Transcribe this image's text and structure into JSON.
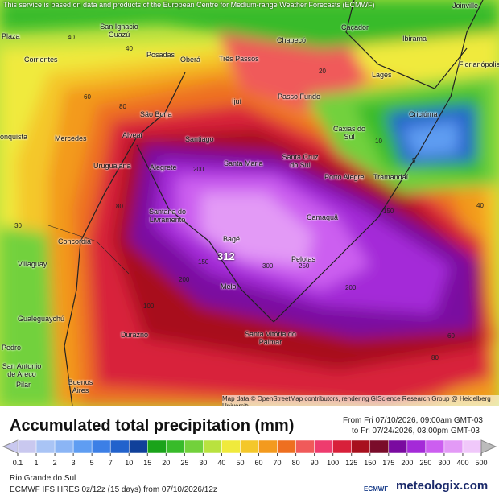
{
  "header": {
    "disclaimer": "This service is based on data and products of the European Centre for Medium-range Weather Forecasts (ECMWF)"
  },
  "map": {
    "cities": [
      "Plaza",
      "San Ignacio Guazú",
      "Corrientes",
      "Posadas",
      "Oberá",
      "Três Passos",
      "Chapecó",
      "Caçador",
      "Joinville",
      "Ibirama",
      "Florianópolis",
      "Lages",
      "Ijuí",
      "Passo Fundo",
      "Criciúma",
      "Caxias do Sul",
      "São Borja",
      "Alvear",
      "onquista",
      "Mercedes",
      "Santiago",
      "Santa Cruz do Sul",
      "Santa Maria",
      "Porto Alegre",
      "Tramandaí",
      "Uruguaiana",
      "Alegrete",
      "Santana do Livramento",
      "Camaquã",
      "Concordia",
      "Bagé",
      "Pelotas",
      "Villaguay",
      "Melo",
      "Gualeguaychú",
      "Durazno",
      "Santa Vitória do Palmar",
      "Pedro",
      "San Antonio de Areco",
      "Pilar",
      "Buenos Aires"
    ],
    "contour_labels": [
      40,
      40,
      60,
      80,
      80,
      100,
      150,
      200,
      200,
      300,
      250,
      200,
      150,
      80,
      60,
      40,
      5,
      10,
      20,
      30
    ],
    "max_value": 312,
    "attribution": "Map data © OpenStreetMap contributors, rendering GIScience Research Group @ Heidelberg University"
  },
  "legend": {
    "title": "Accumulated total precipitation (mm)",
    "from": "From Fri 07/10/2026, 09:00am GMT-03",
    "to": "to Fri 07/24/2026, 03:00pm GMT-03",
    "ticks": [
      0.1,
      1,
      2,
      3,
      5,
      7,
      10,
      15,
      20,
      25,
      30,
      40,
      50,
      60,
      70,
      80,
      90,
      100,
      125,
      150,
      175,
      200,
      250,
      300,
      400,
      500
    ],
    "colors": [
      "#c9c8ef",
      "#a9c4f5",
      "#8bb5f5",
      "#5f9df2",
      "#3c7fe6",
      "#2262cc",
      "#10409a",
      "#1aa31a",
      "#38bb2a",
      "#72d13c",
      "#b9e23f",
      "#f0ea3c",
      "#f4c72a",
      "#f39a1e",
      "#ee6f20",
      "#f05a5a",
      "#ee3c6e",
      "#d8203a",
      "#a8101e",
      "#7a0c2a",
      "#7a0aa0",
      "#a42ad8",
      "#cc5ef0",
      "#e39af6",
      "#f0c8fa"
    ]
  },
  "footer": {
    "region": "Rio Grande do Sul",
    "model": "ECMWF IFS HRES 0z/12z (15 days) from  07/10/2026/12z",
    "ecmwf": "ECMWF",
    "brand": "meteologix.com"
  }
}
